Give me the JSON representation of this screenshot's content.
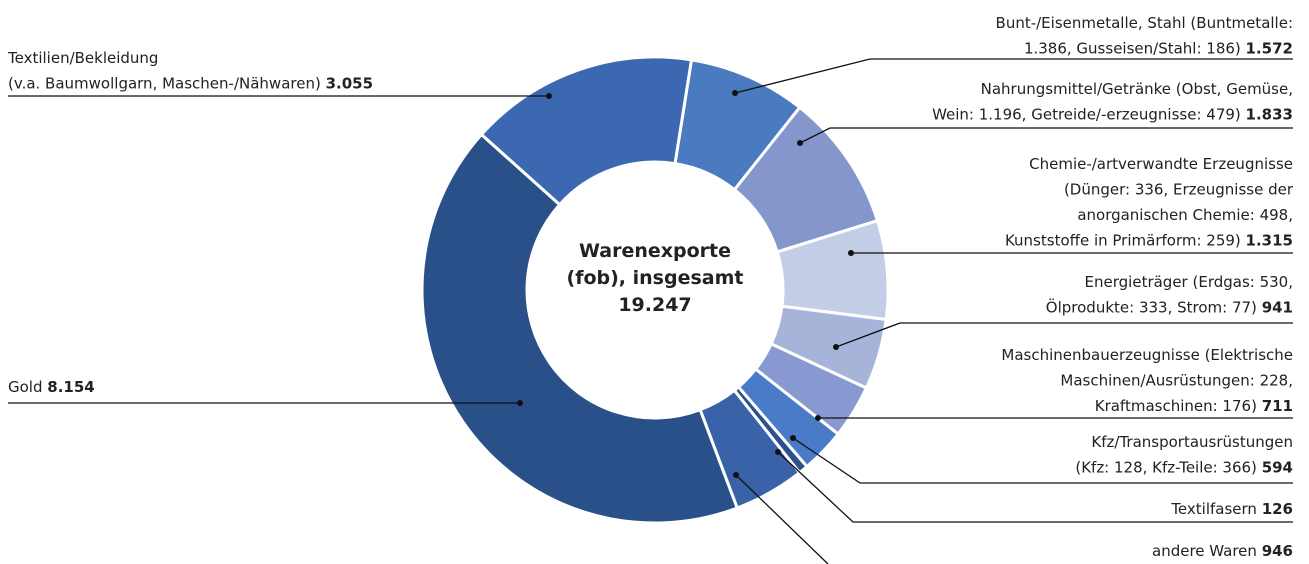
{
  "chart_data": {
    "type": "donut",
    "center_title": "Warenexporte\n(fob), insgesamt",
    "center_value": "19.247",
    "categories": [
      "Bunt-/Eisenmetalle, Stahl (Buntmetalle:\n1.386, Gusseisen/Stahl: 186)",
      "Nahrungsmittel/Getränke (Obst, Gemüse,\nWein: 1.196, Getreide/-erzeugnisse: 479)",
      "Chemie-/artverwandte Erzeugnisse\n(Dünger: 336, Erzeugnisse der\nanorganischen Chemie: 498,\nKunststoffe in Primärform: 259)",
      "Energieträger (Erdgas: 530,\nÖlprodukte: 333, Strom: 77)",
      "Maschinenbauerzeugnisse (Elektrische\nMaschinen/Ausrüstungen: 228,\nKraftmaschinen: 176)",
      "Kfz/Transportausrüstungen\n(Kfz: 128, Kfz-Teile: 366)",
      "Textilfasern",
      "andere Waren",
      "Gold",
      "Textilien/Bekleidung\n(v.a. Baumwollgarn, Maschen-/Nähwaren)"
    ],
    "values": [
      1572,
      1833,
      1315,
      941,
      711,
      594,
      126,
      946,
      8154,
      3055
    ],
    "value_labels": [
      "1.572",
      "1.833",
      "1.315",
      "941",
      "711",
      "594",
      "126",
      "946",
      "8.154",
      "3.055"
    ],
    "colors": [
      "#4a7bc0",
      "#8496cb",
      "#c3cde6",
      "#a7b4da",
      "#8799d0",
      "#4a7bc8",
      "#2d4f8e",
      "#3a62a8",
      "#2a5089",
      "#3b68b0"
    ]
  }
}
